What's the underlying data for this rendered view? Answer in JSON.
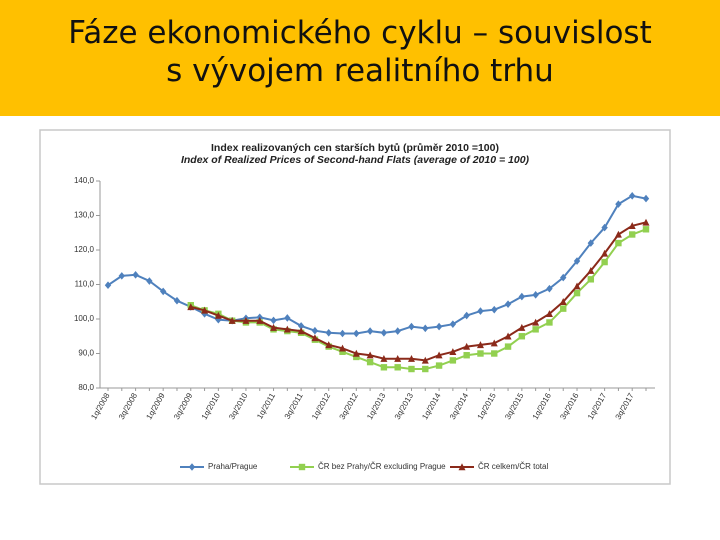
{
  "title_lines": [
    "Fáze ekonomického cyklu – souvislost",
    "s vývojem realitního trhu"
  ],
  "chart_data": {
    "type": "line",
    "title": "Index realizovaných cen starších bytů (průměr 2010 =100)",
    "subtitle": "Index of Realized Prices of Second-hand Flats (average of 2010 = 100)",
    "categories": [
      "1q/2008",
      null,
      "3q/2008",
      null,
      "1q/2009",
      null,
      "3q/2009",
      null,
      "1q/2010",
      null,
      "3q/2010",
      null,
      "1q/2011",
      null,
      "3q/2011",
      null,
      "1q/2012",
      null,
      "3q/2012",
      null,
      "1q/2013",
      null,
      "3q/2013",
      null,
      "1q/2014",
      null,
      "3q/2014",
      null,
      "1q/2015",
      null,
      "3q/2015",
      null,
      "1q/2016",
      null,
      "3q/2016",
      null,
      "1q/2017",
      null,
      "3q/2017",
      null
    ],
    "series": [
      {
        "name": "Praha/Prague",
        "color": "#4F81BD",
        "marker": "diamond",
        "values": [
          109.8,
          112.5,
          112.8,
          111,
          108,
          105.3,
          103.5,
          101.5,
          99.8,
          99.5,
          100.2,
          100.5,
          99.6,
          100.3,
          98,
          96.6,
          96,
          95.8,
          95.8,
          96.5,
          96,
          96.5,
          97.8,
          97.3,
          97.8,
          98.5,
          101,
          102.3,
          102.7,
          104.3,
          106.5,
          107,
          108.8,
          112,
          116.8,
          122,
          126.5,
          133.3,
          135.7,
          134.9
        ]
      },
      {
        "name": "ČR bez Prahy/ČR excluding Prague",
        "color": "#92D050",
        "marker": "square",
        "values": [
          null,
          null,
          null,
          null,
          null,
          null,
          104,
          102.5,
          101.5,
          99.5,
          99,
          99,
          97,
          96.5,
          96,
          94,
          92,
          90.5,
          89,
          87.5,
          86,
          86,
          85.5,
          85.5,
          86.5,
          88,
          89.5,
          90,
          90,
          92,
          95,
          97,
          99,
          103,
          107.5,
          111.5,
          116.5,
          122,
          124.5,
          126
        ]
      },
      {
        "name": "ČR celkem/ČR total",
        "color": "#8B2A1A",
        "marker": "triangle",
        "values": [
          null,
          null,
          null,
          null,
          null,
          null,
          103.5,
          102.5,
          101,
          99.5,
          99.5,
          99.5,
          97.5,
          97,
          96.5,
          94.5,
          92.5,
          91.5,
          90,
          89.5,
          88.5,
          88.5,
          88.5,
          88,
          89.5,
          90.5,
          92,
          92.5,
          93,
          95,
          97.5,
          99,
          101.5,
          105,
          109.5,
          114,
          119,
          124.5,
          127,
          128
        ]
      }
    ],
    "ylim": [
      80,
      140
    ],
    "yticks": [
      {
        "value": 80,
        "label": "80,0"
      },
      {
        "value": 90,
        "label": "90,0"
      },
      {
        "value": 100,
        "label": "100,0"
      },
      {
        "value": 110,
        "label": "110,0"
      },
      {
        "value": 120,
        "label": "120,0"
      },
      {
        "value": 130,
        "label": "130,0"
      },
      {
        "value": 140,
        "label": "140,0"
      }
    ],
    "grid": false,
    "legend": "bottom"
  }
}
